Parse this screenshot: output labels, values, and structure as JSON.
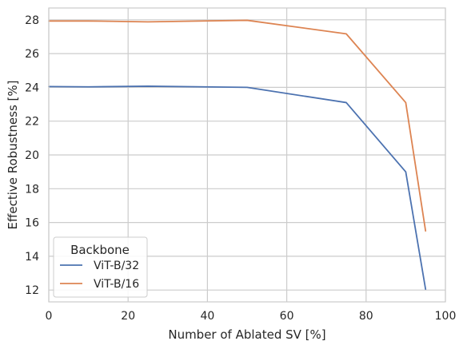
{
  "chart_data": {
    "type": "line",
    "xlabel": "Number of Ablated SV [%]",
    "ylabel": "Effective Robustness [%]",
    "xlim": [
      0,
      100
    ],
    "ylim": [
      11.3,
      28.7
    ],
    "xticks": [
      0,
      20,
      40,
      60,
      80,
      100
    ],
    "yticks": [
      12,
      14,
      16,
      18,
      20,
      22,
      24,
      26,
      28
    ],
    "grid": true,
    "legend": {
      "title": "Backbone",
      "placement": "lower-left"
    },
    "x": [
      0,
      10,
      25,
      50,
      75,
      90,
      95
    ],
    "series": [
      {
        "name": "ViT-B/32",
        "color": "#4c72b0",
        "values": [
          24.05,
          24.03,
          24.07,
          24.0,
          23.1,
          19.0,
          12.05
        ]
      },
      {
        "name": "ViT-B/16",
        "color": "#dd8452",
        "values": [
          27.93,
          27.93,
          27.88,
          27.97,
          27.17,
          23.1,
          15.5
        ]
      }
    ]
  }
}
